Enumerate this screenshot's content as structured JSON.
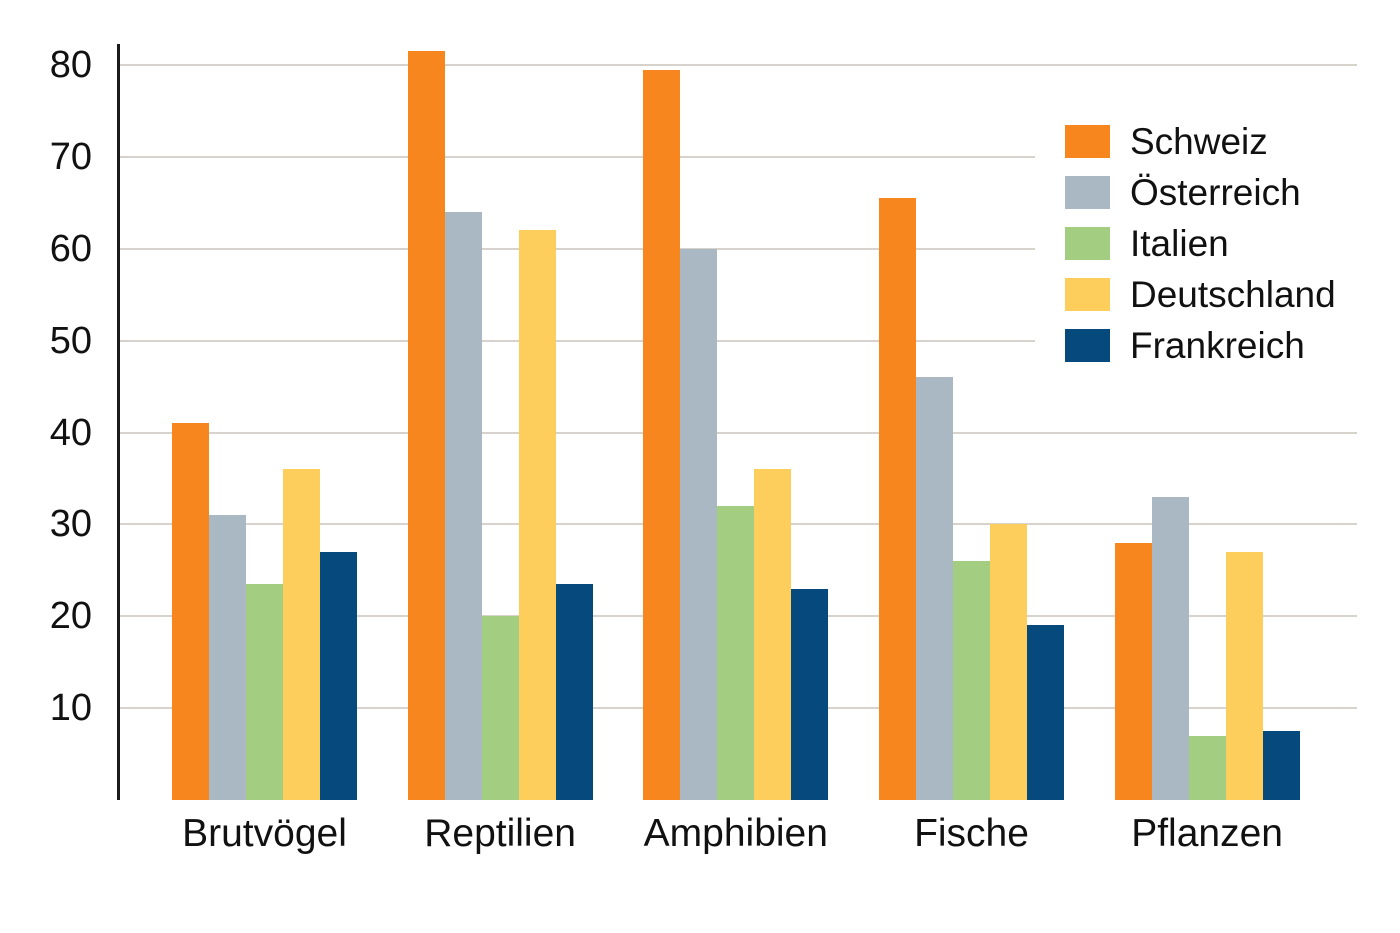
{
  "chart_data": {
    "type": "bar",
    "title": "",
    "xlabel": "",
    "ylabel": "",
    "categories": [
      "Brutvögel",
      "Reptilien",
      "Amphibien",
      "Fische",
      "Pflanzen"
    ],
    "series": [
      {
        "name": "Schweiz",
        "color": "#F8861E",
        "values": [
          41,
          81.5,
          79.5,
          65.5,
          28
        ]
      },
      {
        "name": "Österreich",
        "color": "#A9B8C2",
        "values": [
          31,
          64,
          60,
          46,
          33
        ]
      },
      {
        "name": "Italien",
        "color": "#A3CD81",
        "values": [
          23.5,
          20,
          32,
          26,
          7
        ]
      },
      {
        "name": "Deutschland",
        "color": "#FDCE5B",
        "values": [
          36,
          62,
          36,
          30,
          27
        ]
      },
      {
        "name": "Frankreich",
        "color": "#05497D",
        "values": [
          27,
          23.5,
          23,
          19,
          7.5
        ]
      }
    ],
    "yticks": [
      10,
      20,
      30,
      40,
      50,
      60,
      70,
      80
    ],
    "ylim": [
      0,
      82.3
    ],
    "grid": true,
    "legend_position": "upper-right",
    "colors": {
      "background": "#FFFFFF",
      "gridline": "#D8D2CC",
      "axis": "#1A1A1A",
      "text": "#111111"
    }
  }
}
